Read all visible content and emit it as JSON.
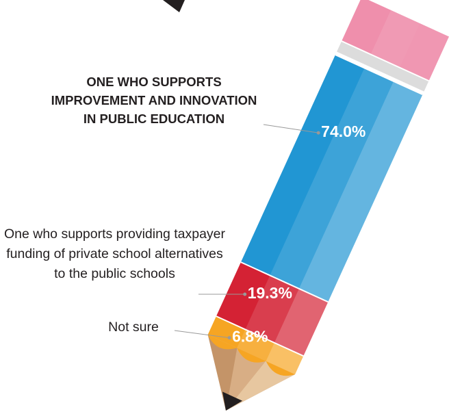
{
  "chart_data": {
    "type": "pencil",
    "categories": [
      "ONE WHO SUPPORTS IMPROVEMENT AND INNOVATION IN PUBLIC EDUCATION",
      "One who supports providing taxpayer funding of private school alternatives to the public schools",
      "Not sure"
    ],
    "values": [
      74.0,
      19.3,
      6.8
    ],
    "value_labels": [
      "74.0%",
      "19.3%",
      "6.8%"
    ],
    "colors": [
      "#2196d3",
      "#d42234",
      "#f6a523"
    ]
  }
}
